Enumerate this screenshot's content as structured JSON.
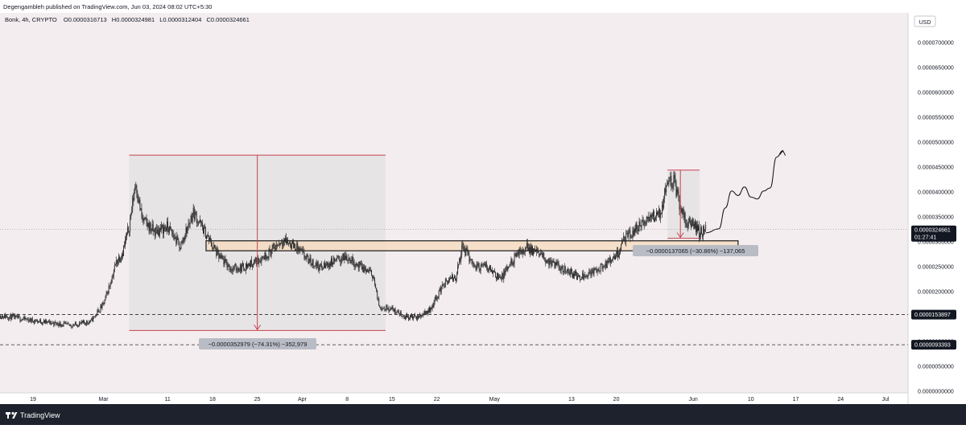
{
  "header": {
    "published": "Degengambleh published on TradingView.com, Jun 03, 2024 08:02 UTC+5:30",
    "symbol": "Bonk, 4h, CRYPTO",
    "o_label": "O",
    "o_value": "0.0000316713",
    "h_label": "H",
    "h_value": "0.0000324981",
    "l_label": "L",
    "l_value": "0.0000312404",
    "c_label": "C",
    "c_value": "0.0000324661"
  },
  "currency": "USD",
  "footer": {
    "logo_text": "TradingView"
  },
  "price_tag": {
    "value": "0.0000324661",
    "countdown": "01:27:41"
  },
  "levels": [
    {
      "label": "0.0000153897",
      "value": 1.53897e-05
    },
    {
      "label": "0.0000093393",
      "value": 9.3393e-06
    }
  ],
  "measurements": [
    {
      "label": "−0.0000352979 (−74.31%) −352,979"
    },
    {
      "label": "−0.0000137065 (−30.86%) −137,065"
    }
  ],
  "colors": {
    "background": "#f3edef",
    "candle": "#2b2b2b",
    "measure_fill": "#dcdcdc",
    "measure_line": "#c7424f",
    "zone_fill": "#f5dcc2",
    "zone_border": "#1a1a1a",
    "label_bg": "#b9bcc4",
    "tag_bg": "#131722"
  },
  "chart_data": {
    "type": "candlestick",
    "interval": "4h",
    "x_ticks": [
      "19",
      "Mar",
      "11",
      "18",
      "25",
      "Apr",
      "8",
      "15",
      "22",
      "May",
      "13",
      "20",
      "Jun",
      "10",
      "17",
      "24",
      "Jul"
    ],
    "y_ticks": [
      "0.0000700000",
      "0.0000650000",
      "0.0000600000",
      "0.0000550000",
      "0.0000500000",
      "0.0000450000",
      "0.0000400000",
      "0.0000350000",
      "0.0000300000",
      "0.0000250000",
      "0.0000200000",
      "0.0000150000",
      "0.0000100000",
      "0.0000050000",
      "0.0000000000"
    ],
    "ylim": [
      0,
      7e-05
    ],
    "price_path": [
      [
        "2024-02-12",
        1.55e-05
      ],
      [
        "2024-02-15",
        1.5e-05
      ],
      [
        "2024-02-19",
        1.42e-05
      ],
      [
        "2024-02-22",
        1.37e-05
      ],
      [
        "2024-02-25",
        1.32e-05
      ],
      [
        "2024-02-28",
        1.4e-05
      ],
      [
        "2024-03-01",
        1.75e-05
      ],
      [
        "2024-03-02",
        2.15e-05
      ],
      [
        "2024-03-03",
        2.6e-05
      ],
      [
        "2024-03-04",
        2.8e-05
      ],
      [
        "2024-03-05",
        3.3e-05
      ],
      [
        "2024-03-06",
        4.2e-05
      ],
      [
        "2024-03-07",
        3.45e-05
      ],
      [
        "2024-03-09",
        3.2e-05
      ],
      [
        "2024-03-11",
        3.3e-05
      ],
      [
        "2024-03-13",
        2.9e-05
      ],
      [
        "2024-03-15",
        3.6e-05
      ],
      [
        "2024-03-17",
        3.15e-05
      ],
      [
        "2024-03-19",
        2.7e-05
      ],
      [
        "2024-03-21",
        2.45e-05
      ],
      [
        "2024-03-23",
        2.5e-05
      ],
      [
        "2024-03-25",
        2.62e-05
      ],
      [
        "2024-03-27",
        2.8e-05
      ],
      [
        "2024-03-29",
        3.05e-05
      ],
      [
        "2024-03-31",
        2.9e-05
      ],
      [
        "2024-04-02",
        2.62e-05
      ],
      [
        "2024-04-04",
        2.48e-05
      ],
      [
        "2024-04-06",
        2.62e-05
      ],
      [
        "2024-04-08",
        2.7e-05
      ],
      [
        "2024-04-10",
        2.5e-05
      ],
      [
        "2024-04-12",
        2.35e-05
      ],
      [
        "2024-04-13",
        1.7e-05
      ],
      [
        "2024-04-15",
        1.65e-05
      ],
      [
        "2024-04-17",
        1.5e-05
      ],
      [
        "2024-04-19",
        1.48e-05
      ],
      [
        "2024-04-21",
        1.65e-05
      ],
      [
        "2024-04-23",
        2.15e-05
      ],
      [
        "2024-04-25",
        2.3e-05
      ],
      [
        "2024-04-26",
        2.9e-05
      ],
      [
        "2024-04-28",
        2.5e-05
      ],
      [
        "2024-04-30",
        2.5e-05
      ],
      [
        "2024-05-02",
        2.25e-05
      ],
      [
        "2024-05-04",
        2.65e-05
      ],
      [
        "2024-05-06",
        2.9e-05
      ],
      [
        "2024-05-08",
        2.75e-05
      ],
      [
        "2024-05-10",
        2.55e-05
      ],
      [
        "2024-05-12",
        2.45e-05
      ],
      [
        "2024-05-14",
        2.3e-05
      ],
      [
        "2024-05-16",
        2.38e-05
      ],
      [
        "2024-05-18",
        2.5e-05
      ],
      [
        "2024-05-20",
        2.7e-05
      ],
      [
        "2024-05-21",
        3e-05
      ],
      [
        "2024-05-23",
        3.25e-05
      ],
      [
        "2024-05-25",
        3.45e-05
      ],
      [
        "2024-05-27",
        3.6e-05
      ],
      [
        "2024-05-28",
        4.3e-05
      ],
      [
        "2024-05-29",
        4.2e-05
      ],
      [
        "2024-05-30",
        3.7e-05
      ],
      [
        "2024-05-31",
        3.35e-05
      ],
      [
        "2024-06-01",
        3.4e-05
      ],
      [
        "2024-06-02",
        3.18e-05
      ],
      [
        "2024-06-03",
        3.24661e-05
      ]
    ],
    "projection_path": [
      [
        "2024-06-03",
        3.18e-05
      ],
      [
        "2024-06-05",
        3.26e-05
      ],
      [
        "2024-06-06",
        3.68e-05
      ],
      [
        "2024-06-07",
        4.02e-05
      ],
      [
        "2024-06-08",
        3.93e-05
      ],
      [
        "2024-06-09",
        4.1e-05
      ],
      [
        "2024-06-10",
        3.9e-05
      ],
      [
        "2024-06-11",
        3.86e-05
      ],
      [
        "2024-06-12",
        4.02e-05
      ],
      [
        "2024-06-13",
        4.08e-05
      ],
      [
        "2024-06-14",
        4.7e-05
      ],
      [
        "2024-06-15",
        4.83e-05
      ]
    ],
    "support_zone": {
      "from": "2024-03-17",
      "to": "2024-06-08",
      "top": 3.02e-05,
      "bottom": 2.82e-05
    },
    "measure_boxes": [
      {
        "from": "2024-03-05",
        "to": "2024-04-14",
        "top": 4.74e-05,
        "bottom": 1.22e-05,
        "arrow_at": "2024-03-25"
      },
      {
        "from": "2024-05-28",
        "to": "2024-06-02",
        "top": 4.44e-05,
        "bottom": 3.07e-05,
        "arrow_at": "2024-05-30"
      }
    ]
  }
}
